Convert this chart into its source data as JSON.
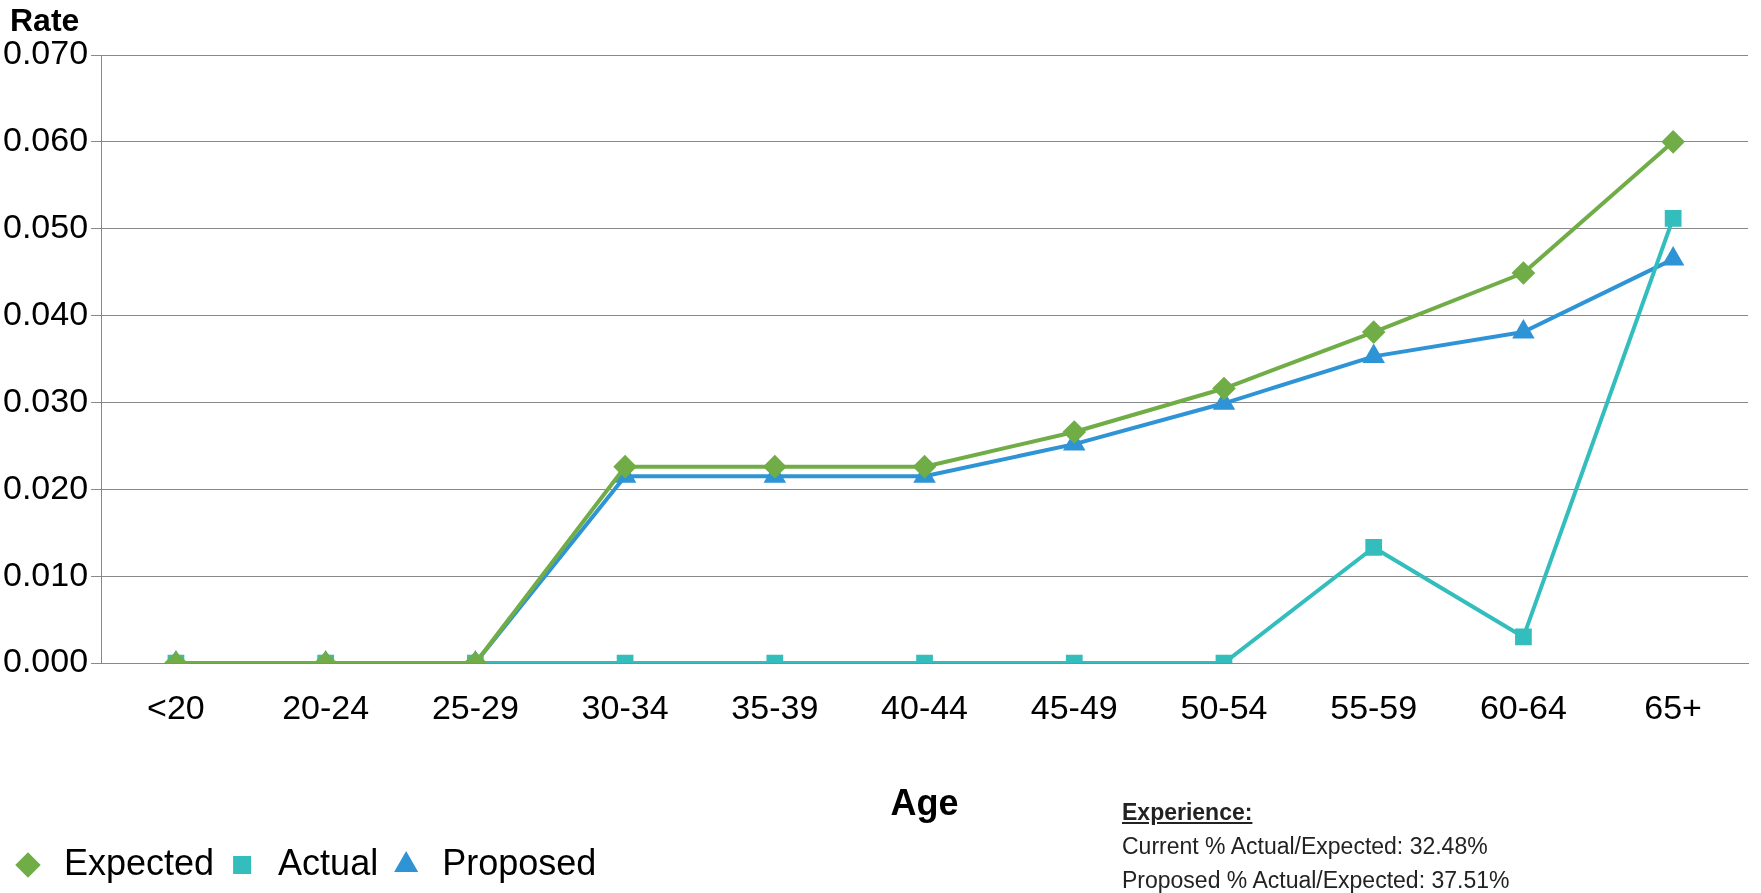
{
  "chart_data": {
    "type": "line",
    "xlabel": "Age",
    "ylabel": "Rate",
    "categories": [
      "<20",
      "20-24",
      "25-29",
      "30-34",
      "35-39",
      "40-44",
      "45-49",
      "50-54",
      "55-59",
      "60-64",
      "65+"
    ],
    "series": [
      {
        "name": "Expected",
        "color": "#70ad47",
        "marker": "diamond",
        "values": [
          0,
          0,
          0,
          0.0226,
          0.0226,
          0.0226,
          0.0266,
          0.0316,
          0.0381,
          0.0449,
          0.06
        ]
      },
      {
        "name": "Actual",
        "color": "#33bdbd",
        "marker": "square",
        "values": [
          0,
          0,
          0,
          0,
          0,
          0,
          0,
          0,
          0.0133,
          0.003,
          0.0512
        ]
      },
      {
        "name": "Proposed",
        "color": "#2e94d6",
        "marker": "triangle",
        "values": [
          0,
          0,
          0,
          0.0215,
          0.0215,
          0.0215,
          0.0252,
          0.0299,
          0.0353,
          0.0381,
          0.0465
        ]
      }
    ],
    "ylim": [
      0,
      0.07
    ],
    "yticks": [
      {
        "value": 0,
        "label": "0.000"
      },
      {
        "value": 0.01,
        "label": "0.010"
      },
      {
        "value": 0.02,
        "label": "0.020"
      },
      {
        "value": 0.03,
        "label": "0.030"
      },
      {
        "value": 0.04,
        "label": "0.040"
      },
      {
        "value": 0.05,
        "label": "0.050"
      },
      {
        "value": 0.06,
        "label": "0.060"
      },
      {
        "value": 0.07,
        "label": "0.070"
      }
    ],
    "grid": "y",
    "legend": "bottom left",
    "line_style": "solid",
    "annotations": [
      "Experience:",
      "Current % Actual/Expected: 32.48%",
      "Proposed % Actual/Expected: 37.51%"
    ]
  }
}
